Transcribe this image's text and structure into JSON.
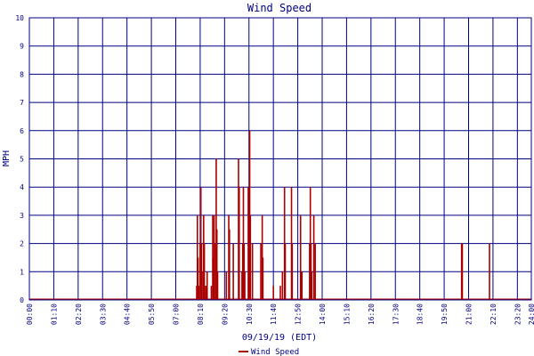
{
  "chart_data": {
    "type": "bar",
    "title": "Wind Speed",
    "xlabel": "09/19/19 (EDT)",
    "ylabel": "MPH",
    "ylim": [
      0,
      10
    ],
    "xlim_minutes": [
      0,
      1440
    ],
    "y_ticks": [
      "0",
      "1",
      "2",
      "3",
      "4",
      "5",
      "6",
      "7",
      "8",
      "9",
      "10"
    ],
    "x_ticks": [
      {
        "minute": 0,
        "label": "00:00"
      },
      {
        "minute": 70,
        "label": "01:10"
      },
      {
        "minute": 140,
        "label": "02:20"
      },
      {
        "minute": 210,
        "label": "03:30"
      },
      {
        "minute": 280,
        "label": "04:40"
      },
      {
        "minute": 350,
        "label": "05:50"
      },
      {
        "minute": 420,
        "label": "07:00"
      },
      {
        "minute": 490,
        "label": "08:10"
      },
      {
        "minute": 560,
        "label": "09:20"
      },
      {
        "minute": 630,
        "label": "10:30"
      },
      {
        "minute": 700,
        "label": "11:40"
      },
      {
        "minute": 770,
        "label": "12:50"
      },
      {
        "minute": 840,
        "label": "14:00"
      },
      {
        "minute": 910,
        "label": "15:10"
      },
      {
        "minute": 980,
        "label": "16:20"
      },
      {
        "minute": 1050,
        "label": "17:30"
      },
      {
        "minute": 1120,
        "label": "18:40"
      },
      {
        "minute": 1190,
        "label": "19:50"
      },
      {
        "minute": 1260,
        "label": "21:00"
      },
      {
        "minute": 1330,
        "label": "22:10"
      },
      {
        "minute": 1400,
        "label": "23:20"
      },
      {
        "minute": 1440,
        "label": "24:00"
      }
    ],
    "grid": true,
    "legend_position": "bottom",
    "series": [
      {
        "name": "Wind Speed",
        "color": "#aa0000",
        "points": [
          {
            "t": "08:00",
            "v": 0.5
          },
          {
            "t": "08:02",
            "v": 3.0
          },
          {
            "t": "08:04",
            "v": 1.5
          },
          {
            "t": "08:06",
            "v": 0.5
          },
          {
            "t": "08:10",
            "v": 2.0
          },
          {
            "t": "08:12",
            "v": 4.0
          },
          {
            "t": "08:14",
            "v": 2.0
          },
          {
            "t": "08:18",
            "v": 1.0
          },
          {
            "t": "08:20",
            "v": 3.0
          },
          {
            "t": "08:22",
            "v": 2.0
          },
          {
            "t": "08:26",
            "v": 0.5
          },
          {
            "t": "08:30",
            "v": 1.0
          },
          {
            "t": "08:42",
            "v": 0.5
          },
          {
            "t": "08:46",
            "v": 3.0
          },
          {
            "t": "08:48",
            "v": 1.5
          },
          {
            "t": "08:50",
            "v": 3.0
          },
          {
            "t": "08:54",
            "v": 2.0
          },
          {
            "t": "08:56",
            "v": 5.0
          },
          {
            "t": "08:58",
            "v": 2.5
          },
          {
            "t": "09:00",
            "v": 1.0
          },
          {
            "t": "09:25",
            "v": 1.0
          },
          {
            "t": "09:32",
            "v": 3.0
          },
          {
            "t": "09:34",
            "v": 2.5
          },
          {
            "t": "09:45",
            "v": 2.0
          },
          {
            "t": "10:00",
            "v": 5.0
          },
          {
            "t": "10:02",
            "v": 4.0
          },
          {
            "t": "10:10",
            "v": 1.0
          },
          {
            "t": "10:12",
            "v": 2.0
          },
          {
            "t": "10:14",
            "v": 4.0
          },
          {
            "t": "10:16",
            "v": 2.0
          },
          {
            "t": "10:18",
            "v": 1.0
          },
          {
            "t": "10:28",
            "v": 4.0
          },
          {
            "t": "10:32",
            "v": 6.0
          },
          {
            "t": "10:34",
            "v": 3.0
          },
          {
            "t": "10:40",
            "v": 2.0
          },
          {
            "t": "11:04",
            "v": 2.0
          },
          {
            "t": "11:08",
            "v": 3.0
          },
          {
            "t": "11:10",
            "v": 1.5
          },
          {
            "t": "11:40",
            "v": 0.5
          },
          {
            "t": "12:00",
            "v": 0.5
          },
          {
            "t": "12:06",
            "v": 1.0
          },
          {
            "t": "12:12",
            "v": 4.0
          },
          {
            "t": "12:14",
            "v": 2.0
          },
          {
            "t": "12:32",
            "v": 4.0
          },
          {
            "t": "12:34",
            "v": 2.0
          },
          {
            "t": "12:58",
            "v": 3.0
          },
          {
            "t": "13:02",
            "v": 1.0
          },
          {
            "t": "13:24",
            "v": 2.0
          },
          {
            "t": "13:26",
            "v": 4.0
          },
          {
            "t": "13:28",
            "v": 2.0
          },
          {
            "t": "13:30",
            "v": 1.0
          },
          {
            "t": "13:36",
            "v": 3.0
          },
          {
            "t": "13:40",
            "v": 2.0
          },
          {
            "t": "20:40",
            "v": 2.0
          },
          {
            "t": "20:42",
            "v": 2.0
          },
          {
            "t": "22:00",
            "v": 2.0
          }
        ]
      }
    ]
  }
}
